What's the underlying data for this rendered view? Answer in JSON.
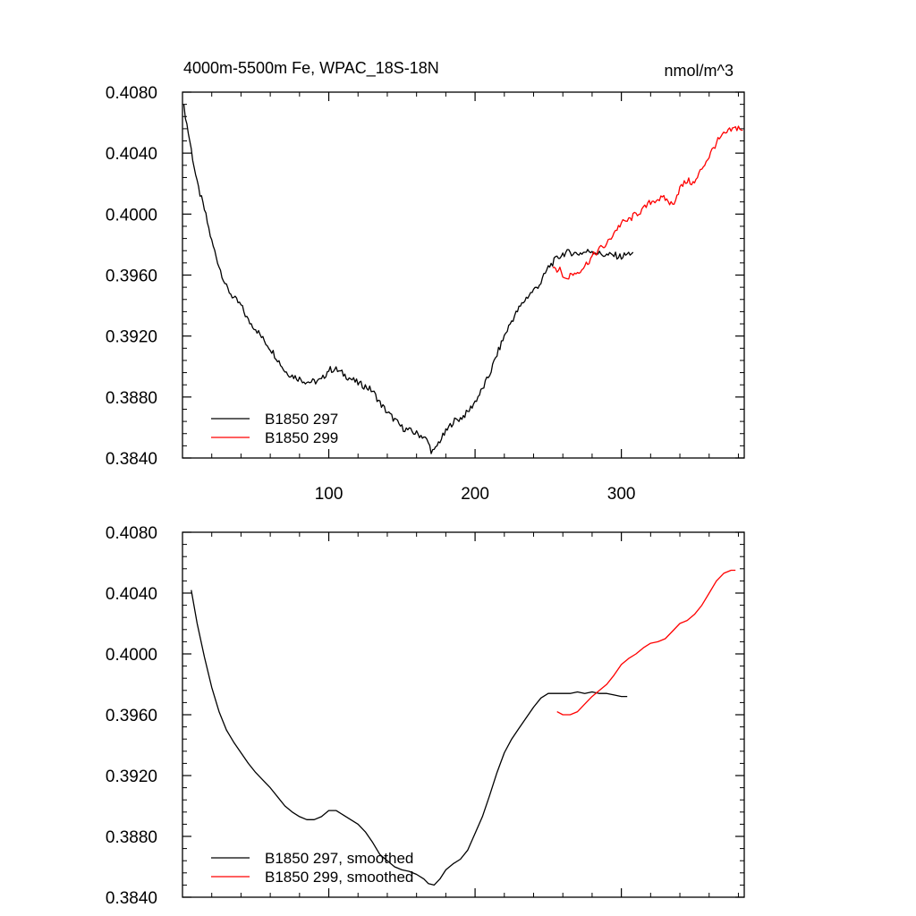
{
  "figure": {
    "title_left": "4000m-5500m Fe, WPAC_18S-18N",
    "title_right": "nmol/m^3"
  },
  "chart_data": [
    {
      "type": "line",
      "panel": "top",
      "title": "4000m-5500m Fe, WPAC_18S-18N",
      "units": "nmol/m^3",
      "xlim": [
        0,
        384
      ],
      "ylim": [
        0.384,
        0.408
      ],
      "x_ticks": [
        100,
        200,
        300
      ],
      "x_tick_labels": [
        "100",
        "200",
        "300"
      ],
      "y_ticks": [
        0.384,
        0.388,
        0.392,
        0.396,
        0.4,
        0.404,
        0.408
      ],
      "y_tick_labels": [
        "0.3840",
        "0.3880",
        "0.3920",
        "0.3960",
        "0.4000",
        "0.4040",
        "0.4080"
      ],
      "legend_position": "bottom-left",
      "series": [
        {
          "name": "B1850 297",
          "color": "#000000",
          "noisy": true,
          "x": [
            1,
            5,
            10,
            15,
            20,
            25,
            30,
            35,
            40,
            45,
            50,
            55,
            60,
            65,
            70,
            75,
            80,
            85,
            90,
            95,
            100,
            105,
            110,
            115,
            120,
            125,
            130,
            135,
            140,
            145,
            150,
            155,
            160,
            165,
            168,
            170,
            172,
            175,
            180,
            185,
            190,
            195,
            200,
            205,
            210,
            215,
            220,
            225,
            230,
            235,
            240,
            245,
            250,
            255,
            260,
            265,
            270,
            275,
            280,
            285,
            290,
            295,
            300,
            305,
            308
          ],
          "y": [
            0.407,
            0.4048,
            0.402,
            0.4003,
            0.3982,
            0.3966,
            0.3952,
            0.3945,
            0.394,
            0.393,
            0.3925,
            0.3918,
            0.3912,
            0.3905,
            0.3897,
            0.3894,
            0.3892,
            0.389,
            0.389,
            0.3891,
            0.3898,
            0.3898,
            0.3895,
            0.3892,
            0.3889,
            0.3887,
            0.3884,
            0.3876,
            0.387,
            0.3865,
            0.386,
            0.3858,
            0.3856,
            0.3854,
            0.385,
            0.3845,
            0.3844,
            0.385,
            0.3857,
            0.3864,
            0.3866,
            0.387,
            0.3877,
            0.3885,
            0.3895,
            0.3908,
            0.392,
            0.393,
            0.3938,
            0.3945,
            0.395,
            0.3955,
            0.3965,
            0.397,
            0.3974,
            0.3975,
            0.3974,
            0.3975,
            0.3976,
            0.3974,
            0.3973,
            0.3973,
            0.3972,
            0.3974,
            0.3975
          ]
        },
        {
          "name": "B1850 299",
          "color": "#ff0000",
          "noisy": true,
          "x": [
            253,
            258,
            262,
            265,
            270,
            275,
            280,
            285,
            290,
            295,
            300,
            305,
            310,
            315,
            320,
            325,
            330,
            335,
            340,
            345,
            350,
            355,
            360,
            365,
            370,
            375,
            380,
            383
          ],
          "y": [
            0.3966,
            0.3963,
            0.3957,
            0.396,
            0.3962,
            0.3966,
            0.3972,
            0.3977,
            0.398,
            0.3988,
            0.3994,
            0.3996,
            0.4,
            0.4003,
            0.4008,
            0.401,
            0.401,
            0.4006,
            0.4017,
            0.4022,
            0.402,
            0.403,
            0.4038,
            0.4047,
            0.4052,
            0.4055,
            0.4057,
            0.4055
          ]
        }
      ]
    },
    {
      "type": "line",
      "panel": "bottom",
      "xlim": [
        0,
        384
      ],
      "ylim": [
        0.384,
        0.408
      ],
      "x_ticks": [
        100,
        200,
        300
      ],
      "y_ticks": [
        0.384,
        0.388,
        0.392,
        0.396,
        0.4,
        0.404,
        0.408
      ],
      "y_tick_labels": [
        "0.3840",
        "0.3880",
        "0.3920",
        "0.3960",
        "0.4000",
        "0.4040",
        "0.4080"
      ],
      "legend_position": "bottom-left",
      "series": [
        {
          "name": "B1850 297, smoothed",
          "color": "#000000",
          "noisy": false,
          "x": [
            6,
            10,
            15,
            20,
            25,
            30,
            35,
            40,
            45,
            50,
            55,
            60,
            65,
            70,
            75,
            80,
            85,
            90,
            95,
            100,
            105,
            110,
            115,
            120,
            125,
            130,
            135,
            140,
            145,
            150,
            155,
            160,
            165,
            168,
            172,
            176,
            180,
            185,
            190,
            195,
            200,
            205,
            210,
            215,
            220,
            225,
            230,
            235,
            240,
            245,
            250,
            255,
            260,
            265,
            270,
            275,
            280,
            285,
            290,
            295,
            300,
            304
          ],
          "y": [
            0.4042,
            0.402,
            0.3998,
            0.3978,
            0.3962,
            0.395,
            0.3942,
            0.3935,
            0.3928,
            0.3922,
            0.3917,
            0.3912,
            0.3906,
            0.39,
            0.3896,
            0.3893,
            0.3891,
            0.3891,
            0.3893,
            0.3897,
            0.3897,
            0.3894,
            0.3891,
            0.3888,
            0.3883,
            0.3876,
            0.3868,
            0.3864,
            0.386,
            0.3858,
            0.3857,
            0.3855,
            0.3852,
            0.3849,
            0.3848,
            0.3852,
            0.3858,
            0.3862,
            0.3865,
            0.3871,
            0.3882,
            0.3893,
            0.3907,
            0.3922,
            0.3935,
            0.3944,
            0.3951,
            0.3958,
            0.3965,
            0.3971,
            0.3974,
            0.3974,
            0.3974,
            0.3974,
            0.3975,
            0.3974,
            0.3975,
            0.3974,
            0.3974,
            0.3973,
            0.3972,
            0.3972
          ]
        },
        {
          "name": "B1850 299, smoothed",
          "color": "#ff0000",
          "noisy": false,
          "x": [
            256,
            260,
            265,
            270,
            275,
            280,
            285,
            290,
            295,
            300,
            305,
            310,
            315,
            320,
            325,
            330,
            335,
            340,
            345,
            350,
            355,
            360,
            365,
            370,
            375,
            378
          ],
          "y": [
            0.3962,
            0.396,
            0.396,
            0.3962,
            0.3967,
            0.3972,
            0.3976,
            0.398,
            0.3986,
            0.3993,
            0.3997,
            0.4,
            0.4004,
            0.4007,
            0.4008,
            0.401,
            0.4015,
            0.402,
            0.4022,
            0.4026,
            0.4032,
            0.404,
            0.4048,
            0.4053,
            0.4055,
            0.4055
          ]
        }
      ]
    }
  ]
}
